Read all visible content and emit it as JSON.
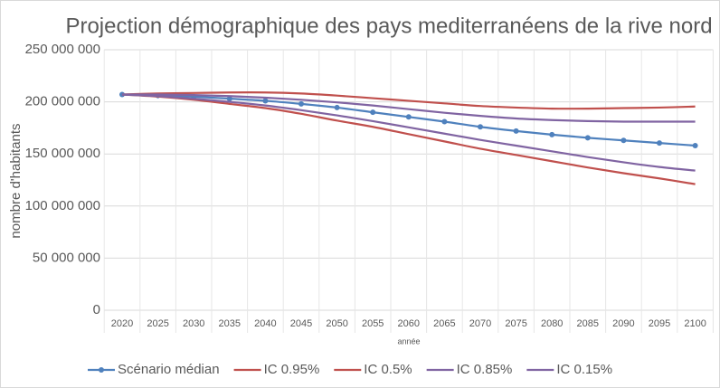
{
  "chart_data": {
    "type": "line",
    "title": "Projection démographique des pays mediterranéens de la rive nord",
    "x_label": "année",
    "y_label": "nombre d'habitants",
    "categories": [
      "2020",
      "2025",
      "2030",
      "2035",
      "2040",
      "2045",
      "2050",
      "2055",
      "2060",
      "2065",
      "2070",
      "2075",
      "2080",
      "2085",
      "2090",
      "2095",
      "2100"
    ],
    "series": [
      {
        "name": "Scénario médian",
        "color": "#4f81bd",
        "markers": true,
        "values": [
          207000000,
          206000000,
          205000000,
          203000000,
          201000000,
          198000000,
          194500000,
          190000000,
          185500000,
          181000000,
          176000000,
          172000000,
          168500000,
          165500000,
          163000000,
          160500000,
          158000000
        ]
      },
      {
        "name": "IC 0.95%",
        "color": "#c0504d",
        "markers": false,
        "values": [
          207000000,
          208000000,
          208500000,
          209000000,
          209000000,
          208000000,
          206000000,
          203500000,
          201000000,
          198500000,
          196000000,
          194500000,
          193500000,
          193500000,
          194000000,
          194500000,
          195500000
        ]
      },
      {
        "name": "IC 0.5%",
        "color": "#c0504d",
        "markers": false,
        "values": [
          207000000,
          205000000,
          202000000,
          198000000,
          194000000,
          188500000,
          182000000,
          176000000,
          169000000,
          162000000,
          155000000,
          149000000,
          143000000,
          137000000,
          131500000,
          126500000,
          121000000
        ]
      },
      {
        "name": "IC 0.85%",
        "color": "#8064a2",
        "markers": false,
        "values": [
          207000000,
          207000000,
          206500000,
          205500000,
          204000000,
          202000000,
          199500000,
          196500000,
          193000000,
          189500000,
          186500000,
          184000000,
          182500000,
          181500000,
          181000000,
          181000000,
          181000000
        ]
      },
      {
        "name": "IC 0.15%",
        "color": "#8064a2",
        "markers": false,
        "values": [
          207000000,
          205500000,
          203000000,
          200000000,
          196500000,
          192000000,
          187000000,
          181500000,
          175500000,
          169500000,
          163500000,
          158000000,
          152500000,
          147000000,
          142000000,
          137500000,
          134000000
        ]
      }
    ],
    "ylim": [
      0,
      250000000
    ],
    "yticks": [
      0,
      {
        "value": 50000000,
        "label": "50 000 000"
      },
      {
        "value": 100000000,
        "label": "100 000 000"
      },
      {
        "value": 150000000,
        "label": "150 000 000"
      },
      {
        "value": 200000000,
        "label": "200 000 000"
      },
      {
        "value": 250000000,
        "label": "250 000 000"
      }
    ],
    "grid": true,
    "legend": "bottom"
  }
}
